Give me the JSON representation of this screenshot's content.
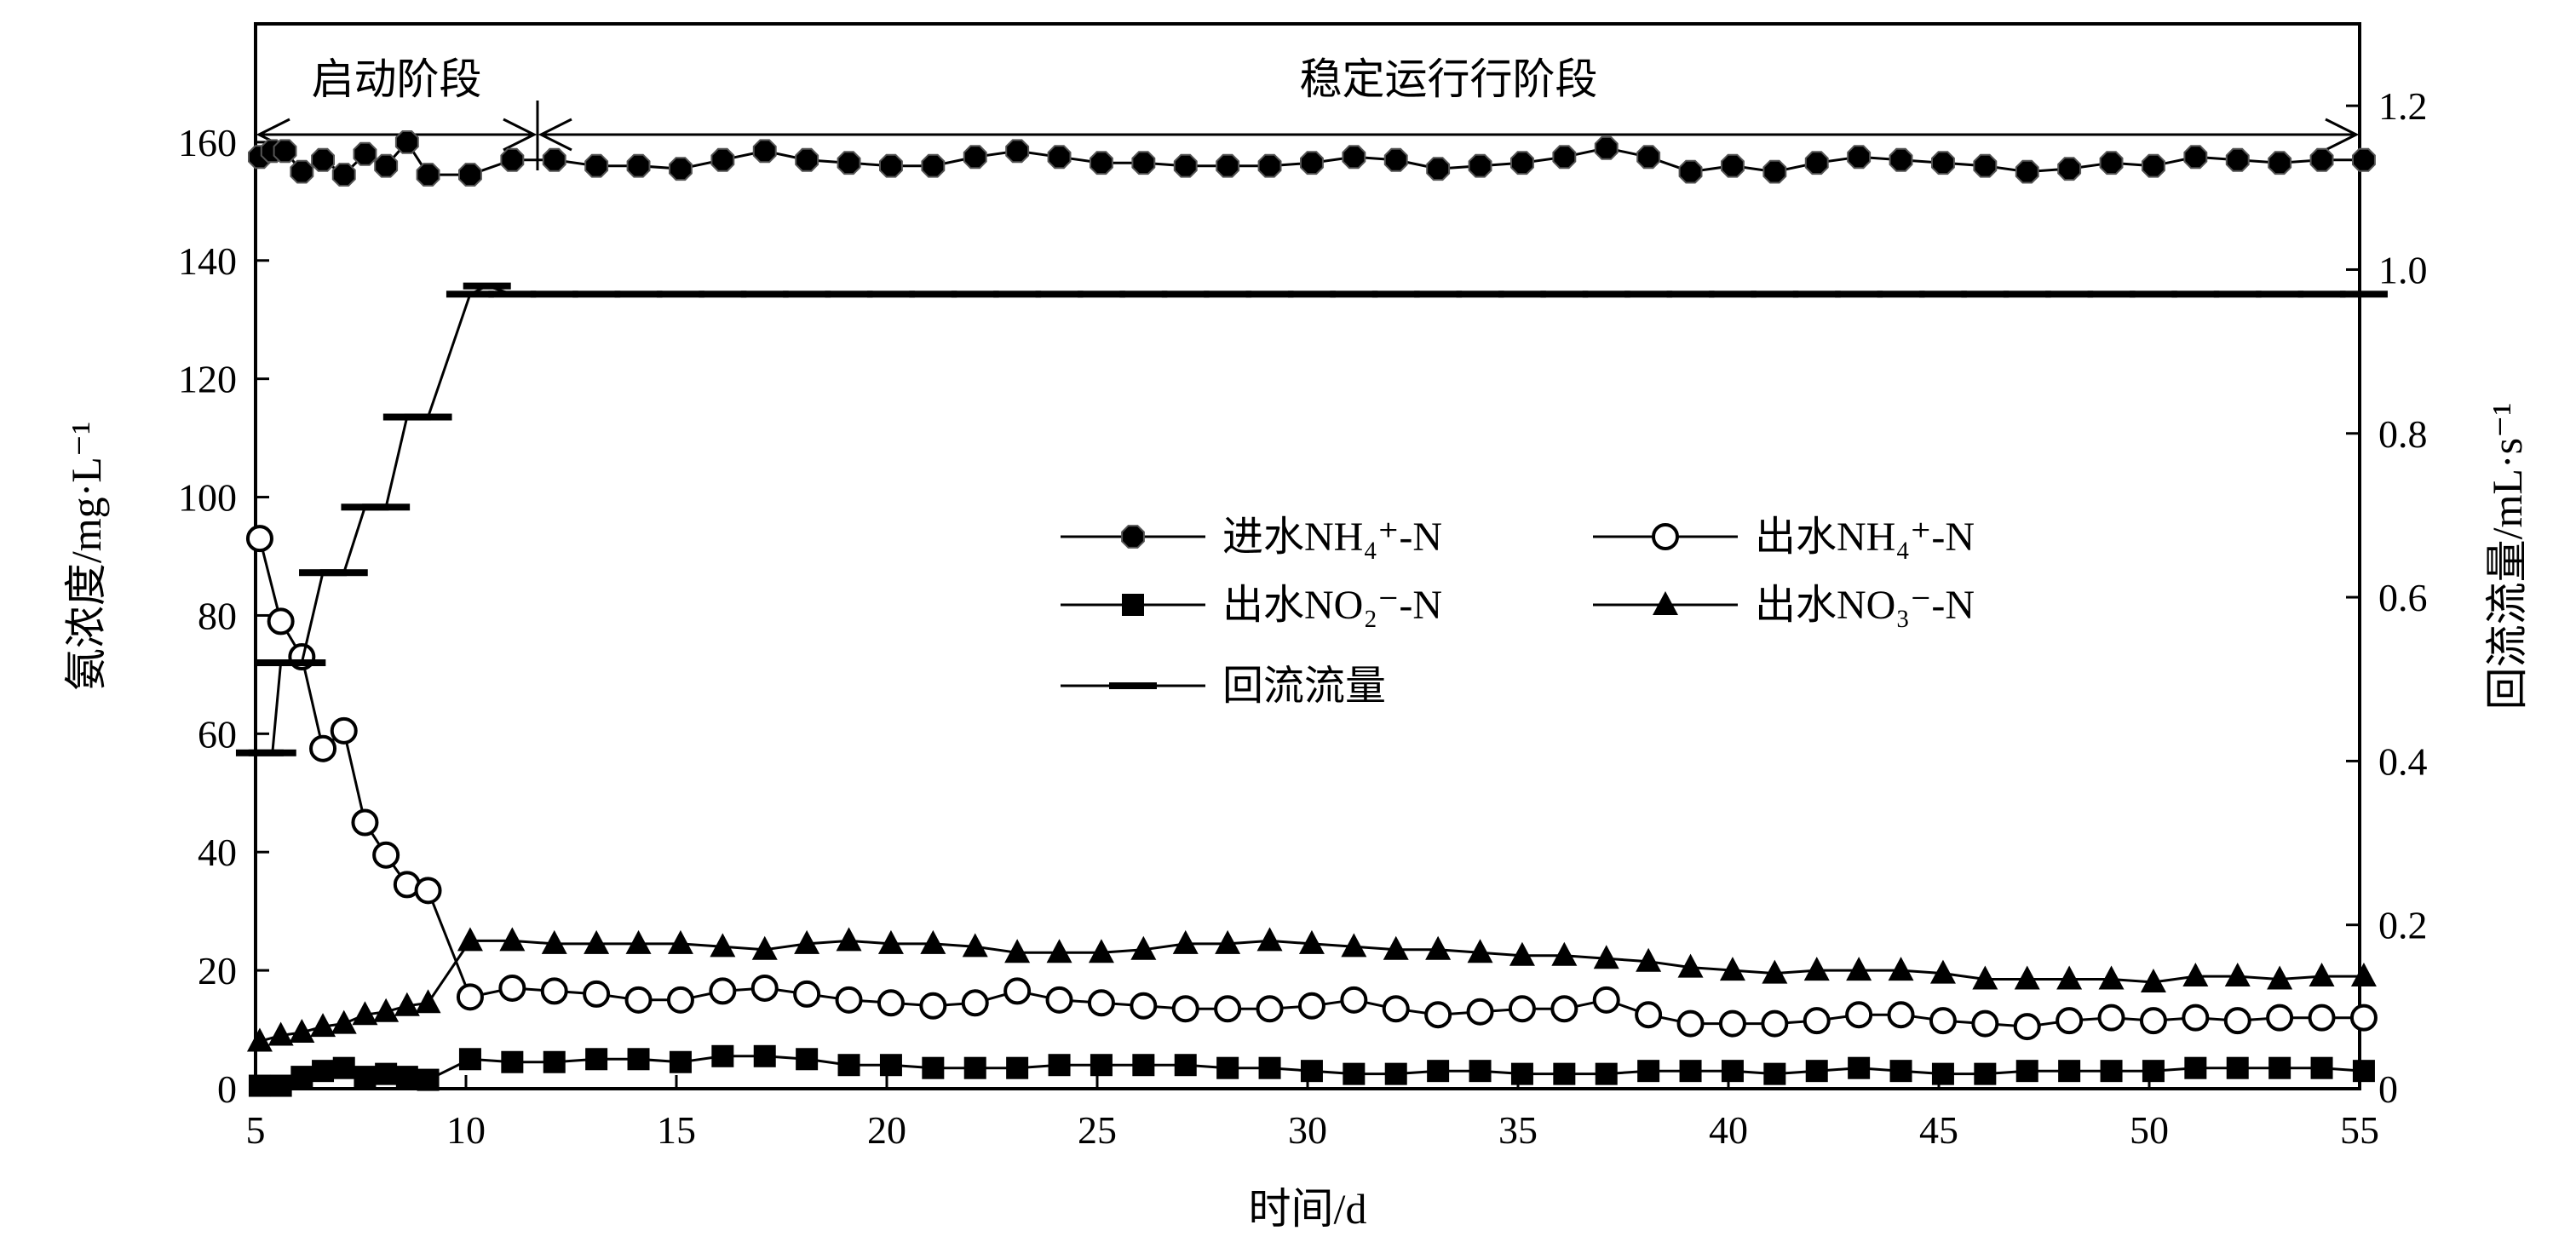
{
  "chart_data": {
    "type": "line",
    "xlabel": "时间/d",
    "ylabel_left": "氨浓度/mg·L⁻¹",
    "ylabel_right": "回流流量/mL·s⁻¹",
    "xlim": [
      5,
      55
    ],
    "ylim_left": [
      0,
      180
    ],
    "ylim_right": [
      0,
      1.3
    ],
    "xticks": [
      5,
      10,
      15,
      20,
      25,
      30,
      35,
      40,
      45,
      50,
      55
    ],
    "yticks_left": [
      0,
      20,
      40,
      60,
      80,
      100,
      120,
      140,
      160
    ],
    "yticks_right": [
      "0",
      "0.2",
      "0.4",
      "0.6",
      "0.8",
      "1.0",
      "1.2"
    ],
    "grid": false,
    "legend_position": "center",
    "phases": [
      {
        "label": "启动阶段",
        "start": 5,
        "end": 11.7
      },
      {
        "label": "稳定运行行阶段",
        "start": 11.7,
        "end": 55
      }
    ],
    "series": [
      {
        "name": "进水NH₄⁺-N",
        "axis": "left",
        "marker": "filled-octagon",
        "points": [
          [
            5.1,
            157.5
          ],
          [
            5.4,
            158.5
          ],
          [
            5.7,
            158.5
          ],
          [
            6.1,
            155
          ],
          [
            6.6,
            157
          ],
          [
            7.1,
            154.5
          ],
          [
            7.6,
            158
          ],
          [
            8.1,
            156
          ],
          [
            8.6,
            160
          ],
          [
            9.1,
            154.5
          ],
          [
            10.1,
            154.5
          ],
          [
            11.1,
            157
          ],
          [
            12.1,
            157
          ],
          [
            13.1,
            156
          ],
          [
            14.1,
            156
          ],
          [
            15.1,
            155.5
          ],
          [
            16.1,
            157
          ],
          [
            17.1,
            158.5
          ],
          [
            18.1,
            157
          ],
          [
            19.1,
            156.5
          ],
          [
            20.1,
            156
          ],
          [
            21.1,
            156
          ],
          [
            22.1,
            157.5
          ],
          [
            23.1,
            158.5
          ],
          [
            24.1,
            157.5
          ],
          [
            25.1,
            156.5
          ],
          [
            26.1,
            156.5
          ],
          [
            27.1,
            156
          ],
          [
            28.1,
            156
          ],
          [
            29.1,
            156
          ],
          [
            30.1,
            156.5
          ],
          [
            31.1,
            157.5
          ],
          [
            32.1,
            157
          ],
          [
            33.1,
            155.5
          ],
          [
            34.1,
            156
          ],
          [
            35.1,
            156.5
          ],
          [
            36.1,
            157.5
          ],
          [
            37.1,
            159
          ],
          [
            38.1,
            157.5
          ],
          [
            39.1,
            155
          ],
          [
            40.1,
            156
          ],
          [
            41.1,
            155
          ],
          [
            42.1,
            156.5
          ],
          [
            43.1,
            157.5
          ],
          [
            44.1,
            157
          ],
          [
            45.1,
            156.5
          ],
          [
            46.1,
            156
          ],
          [
            47.1,
            155
          ],
          [
            48.1,
            155.5
          ],
          [
            49.1,
            156.5
          ],
          [
            50.1,
            156
          ],
          [
            51.1,
            157.5
          ],
          [
            52.1,
            157
          ],
          [
            53.1,
            156.5
          ],
          [
            54.1,
            157
          ],
          [
            55.1,
            157
          ]
        ]
      },
      {
        "name": "出水NH₄⁺-N",
        "axis": "left",
        "marker": "open-circle",
        "points": [
          [
            5.1,
            93
          ],
          [
            5.6,
            79
          ],
          [
            6.1,
            73
          ],
          [
            6.6,
            57.5
          ],
          [
            7.1,
            60.5
          ],
          [
            7.6,
            45
          ],
          [
            8.1,
            39.5
          ],
          [
            8.6,
            34.5
          ],
          [
            9.1,
            33.5
          ],
          [
            10.1,
            15.5
          ],
          [
            11.1,
            17
          ],
          [
            12.1,
            16.5
          ],
          [
            13.1,
            16
          ],
          [
            14.1,
            15
          ],
          [
            15.1,
            15
          ],
          [
            16.1,
            16.5
          ],
          [
            17.1,
            17
          ],
          [
            18.1,
            16
          ],
          [
            19.1,
            15
          ],
          [
            20.1,
            14.5
          ],
          [
            21.1,
            14
          ],
          [
            22.1,
            14.5
          ],
          [
            23.1,
            16.5
          ],
          [
            24.1,
            15
          ],
          [
            25.1,
            14.5
          ],
          [
            26.1,
            14
          ],
          [
            27.1,
            13.5
          ],
          [
            28.1,
            13.5
          ],
          [
            29.1,
            13.5
          ],
          [
            30.1,
            14
          ],
          [
            31.1,
            15
          ],
          [
            32.1,
            13.5
          ],
          [
            33.1,
            12.5
          ],
          [
            34.1,
            13
          ],
          [
            35.1,
            13.5
          ],
          [
            36.1,
            13.5
          ],
          [
            37.1,
            15
          ],
          [
            38.1,
            12.5
          ],
          [
            39.1,
            11
          ],
          [
            40.1,
            11
          ],
          [
            41.1,
            11
          ],
          [
            42.1,
            11.5
          ],
          [
            43.1,
            12.5
          ],
          [
            44.1,
            12.5
          ],
          [
            45.1,
            11.5
          ],
          [
            46.1,
            11
          ],
          [
            47.1,
            10.5
          ],
          [
            48.1,
            11.5
          ],
          [
            49.1,
            12
          ],
          [
            50.1,
            11.5
          ],
          [
            51.1,
            12
          ],
          [
            52.1,
            11.5
          ],
          [
            53.1,
            12
          ],
          [
            54.1,
            12
          ],
          [
            55.1,
            12
          ]
        ]
      },
      {
        "name": "出水NO₂⁻-N",
        "axis": "left",
        "marker": "filled-square",
        "points": [
          [
            5.1,
            0.5
          ],
          [
            5.6,
            0.5
          ],
          [
            6.1,
            2
          ],
          [
            6.6,
            3
          ],
          [
            7.1,
            3.5
          ],
          [
            7.6,
            2
          ],
          [
            8.1,
            2.5
          ],
          [
            8.6,
            2
          ],
          [
            9.1,
            1.5
          ],
          [
            10.1,
            5
          ],
          [
            11.1,
            4.5
          ],
          [
            12.1,
            4.5
          ],
          [
            13.1,
            5
          ],
          [
            14.1,
            5
          ],
          [
            15.1,
            4.5
          ],
          [
            16.1,
            5.5
          ],
          [
            17.1,
            5.5
          ],
          [
            18.1,
            5
          ],
          [
            19.1,
            4
          ],
          [
            20.1,
            4
          ],
          [
            21.1,
            3.5
          ],
          [
            22.1,
            3.5
          ],
          [
            23.1,
            3.5
          ],
          [
            24.1,
            4
          ],
          [
            25.1,
            4
          ],
          [
            26.1,
            4
          ],
          [
            27.1,
            4
          ],
          [
            28.1,
            3.5
          ],
          [
            29.1,
            3.5
          ],
          [
            30.1,
            3
          ],
          [
            31.1,
            2.5
          ],
          [
            32.1,
            2.5
          ],
          [
            33.1,
            3
          ],
          [
            34.1,
            3
          ],
          [
            35.1,
            2.5
          ],
          [
            36.1,
            2.5
          ],
          [
            37.1,
            2.5
          ],
          [
            38.1,
            3
          ],
          [
            39.1,
            3
          ],
          [
            40.1,
            3
          ],
          [
            41.1,
            2.5
          ],
          [
            42.1,
            3
          ],
          [
            43.1,
            3.5
          ],
          [
            44.1,
            3
          ],
          [
            45.1,
            2.5
          ],
          [
            46.1,
            2.5
          ],
          [
            47.1,
            3
          ],
          [
            48.1,
            3
          ],
          [
            49.1,
            3
          ],
          [
            50.1,
            3
          ],
          [
            51.1,
            3.5
          ],
          [
            52.1,
            3.5
          ],
          [
            53.1,
            3.5
          ],
          [
            54.1,
            3.5
          ],
          [
            55.1,
            3
          ]
        ]
      },
      {
        "name": "出水NO₃⁻-N",
        "axis": "left",
        "marker": "filled-triangle",
        "points": [
          [
            5.1,
            8
          ],
          [
            5.6,
            9
          ],
          [
            6.1,
            9.5
          ],
          [
            6.6,
            10.5
          ],
          [
            7.1,
            11
          ],
          [
            7.6,
            12.5
          ],
          [
            8.1,
            13
          ],
          [
            8.6,
            14
          ],
          [
            9.1,
            14.5
          ],
          [
            10.1,
            25
          ],
          [
            11.1,
            25
          ],
          [
            12.1,
            24.5
          ],
          [
            13.1,
            24.5
          ],
          [
            14.1,
            24.5
          ],
          [
            15.1,
            24.5
          ],
          [
            16.1,
            24
          ],
          [
            17.1,
            23.5
          ],
          [
            18.1,
            24.5
          ],
          [
            19.1,
            25
          ],
          [
            20.1,
            24.5
          ],
          [
            21.1,
            24.5
          ],
          [
            22.1,
            24
          ],
          [
            23.1,
            23
          ],
          [
            24.1,
            23
          ],
          [
            25.1,
            23
          ],
          [
            26.1,
            23.5
          ],
          [
            27.1,
            24.5
          ],
          [
            28.1,
            24.5
          ],
          [
            29.1,
            25
          ],
          [
            30.1,
            24.5
          ],
          [
            31.1,
            24
          ],
          [
            32.1,
            23.5
          ],
          [
            33.1,
            23.5
          ],
          [
            34.1,
            23
          ],
          [
            35.1,
            22.5
          ],
          [
            36.1,
            22.5
          ],
          [
            37.1,
            22
          ],
          [
            38.1,
            21.5
          ],
          [
            39.1,
            20.5
          ],
          [
            40.1,
            20
          ],
          [
            41.1,
            19.5
          ],
          [
            42.1,
            20
          ],
          [
            43.1,
            20
          ],
          [
            44.1,
            20
          ],
          [
            45.1,
            19.5
          ],
          [
            46.1,
            18.5
          ],
          [
            47.1,
            18.5
          ],
          [
            48.1,
            18.5
          ],
          [
            49.1,
            18.5
          ],
          [
            50.1,
            18
          ],
          [
            51.1,
            19
          ],
          [
            52.1,
            19
          ],
          [
            53.1,
            18.5
          ],
          [
            54.1,
            19
          ],
          [
            55.1,
            19
          ]
        ]
      },
      {
        "name": "回流流量",
        "axis": "right",
        "marker": "dash",
        "points": [
          [
            5.1,
            0.41
          ],
          [
            5.4,
            0.41
          ],
          [
            5.6,
            0.52
          ],
          [
            6.1,
            0.52
          ],
          [
            6.6,
            0.63
          ],
          [
            7.1,
            0.63
          ],
          [
            7.6,
            0.71
          ],
          [
            8.1,
            0.71
          ],
          [
            8.6,
            0.82
          ],
          [
            9.1,
            0.82
          ],
          [
            10.1,
            0.97
          ],
          [
            10.5,
            0.98
          ],
          [
            11.1,
            0.97
          ],
          [
            12.1,
            0.97
          ],
          [
            13.1,
            0.97
          ],
          [
            14.1,
            0.97
          ],
          [
            15.1,
            0.97
          ],
          [
            16.1,
            0.97
          ],
          [
            17.1,
            0.97
          ],
          [
            18.1,
            0.97
          ],
          [
            19.1,
            0.97
          ],
          [
            20.1,
            0.97
          ],
          [
            21.1,
            0.97
          ],
          [
            22.1,
            0.97
          ],
          [
            23.1,
            0.97
          ],
          [
            24.1,
            0.97
          ],
          [
            25.1,
            0.97
          ],
          [
            26.1,
            0.97
          ],
          [
            27.1,
            0.97
          ],
          [
            28.1,
            0.97
          ],
          [
            29.1,
            0.97
          ],
          [
            30.1,
            0.97
          ],
          [
            31.1,
            0.97
          ],
          [
            32.1,
            0.97
          ],
          [
            33.1,
            0.97
          ],
          [
            34.1,
            0.97
          ],
          [
            35.1,
            0.97
          ],
          [
            36.1,
            0.97
          ],
          [
            37.1,
            0.97
          ],
          [
            38.1,
            0.97
          ],
          [
            39.1,
            0.97
          ],
          [
            40.1,
            0.97
          ],
          [
            41.1,
            0.97
          ],
          [
            42.1,
            0.97
          ],
          [
            43.1,
            0.97
          ],
          [
            44.1,
            0.97
          ],
          [
            45.1,
            0.97
          ],
          [
            46.1,
            0.97
          ],
          [
            47.1,
            0.97
          ],
          [
            48.1,
            0.97
          ],
          [
            49.1,
            0.97
          ],
          [
            50.1,
            0.97
          ],
          [
            51.1,
            0.97
          ],
          [
            52.1,
            0.97
          ],
          [
            53.1,
            0.97
          ],
          [
            54.1,
            0.97
          ],
          [
            55.1,
            0.97
          ]
        ]
      }
    ],
    "legend": [
      {
        "series": 0
      },
      {
        "series": 1
      },
      {
        "series": 2
      },
      {
        "series": 3
      },
      {
        "series": 4
      }
    ]
  }
}
